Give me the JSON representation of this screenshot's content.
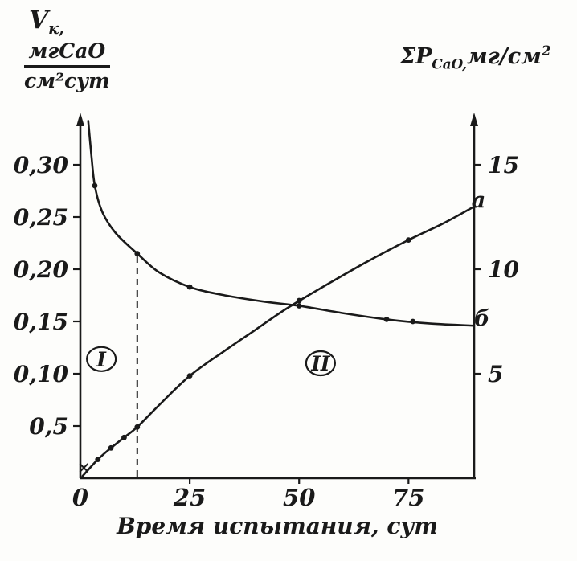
{
  "figure": {
    "background": "#fdfdfb",
    "ink": "#1a1a1a"
  },
  "left_axis_title": {
    "symbol": "V",
    "subscript": "к,",
    "numerator": "мгCaO",
    "denominator": "см²сут"
  },
  "right_axis_title": {
    "symbol": "ΣP",
    "subscript": "CaO,",
    "units": "мг/см",
    "sup": "2"
  },
  "chart_data": {
    "type": "line",
    "title": "",
    "xlabel": "Время испытания, сут",
    "ylabel_left": "Vк, мгCaO/(см²·сут)",
    "ylabel_right": "ΣP CaO, мг/см²",
    "grid": false,
    "legend_position": "none",
    "x_range": [
      0,
      90
    ],
    "x_ticks": [
      {
        "label": "0",
        "value": 0
      },
      {
        "label": "25",
        "value": 25
      },
      {
        "label": "50",
        "value": 50
      },
      {
        "label": "75",
        "value": 75
      }
    ],
    "left_axis": {
      "range": [
        0,
        0.35
      ],
      "ticks": [
        {
          "label": "0,30",
          "value": 0.3
        },
        {
          "label": "0,25",
          "value": 0.25
        },
        {
          "label": "0,20",
          "value": 0.2
        },
        {
          "label": "0,15",
          "value": 0.15
        },
        {
          "label": "0,10",
          "value": 0.1
        },
        {
          "label": "0,5",
          "value": 0.05
        }
      ]
    },
    "right_axis": {
      "range": [
        0,
        17.5
      ],
      "ticks": [
        {
          "label": "15",
          "value": 15
        },
        {
          "label": "10",
          "value": 10
        },
        {
          "label": "5",
          "value": 5
        }
      ]
    },
    "series": [
      {
        "name": "б",
        "axis": "left",
        "description": "corrosion rate Vк, decreasing curve",
        "points": [
          [
            1.8,
            0.342
          ],
          [
            2.5,
            0.31
          ],
          [
            3.3,
            0.28
          ],
          [
            5,
            0.255
          ],
          [
            8,
            0.235
          ],
          [
            13,
            0.215
          ],
          [
            18,
            0.197
          ],
          [
            25,
            0.183
          ],
          [
            33,
            0.175
          ],
          [
            42,
            0.169
          ],
          [
            50,
            0.165
          ],
          [
            60,
            0.158
          ],
          [
            70,
            0.152
          ],
          [
            80,
            0.148
          ],
          [
            90,
            0.146
          ]
        ],
        "markers": [
          [
            3.3,
            0.28
          ],
          [
            13,
            0.215
          ],
          [
            25,
            0.183
          ],
          [
            50,
            0.165
          ],
          [
            70,
            0.152
          ],
          [
            76,
            0.15
          ]
        ],
        "label_pos": [
          91.8,
          0.153
        ]
      },
      {
        "name": "а",
        "axis": "right",
        "description": "cumulative CaO loss ΣP, increasing curve",
        "points": [
          [
            0.5,
            0.1
          ],
          [
            4,
            0.9
          ],
          [
            7,
            1.45
          ],
          [
            10,
            1.95
          ],
          [
            13,
            2.45
          ],
          [
            18,
            3.5
          ],
          [
            25,
            4.9
          ],
          [
            33,
            6.1
          ],
          [
            40,
            7.1
          ],
          [
            47,
            8.1
          ],
          [
            55,
            9.1
          ],
          [
            65,
            10.3
          ],
          [
            75,
            11.4
          ],
          [
            83,
            12.2
          ],
          [
            90,
            13.0
          ]
        ],
        "markers": [
          [
            4,
            0.9
          ],
          [
            7,
            1.45
          ],
          [
            10,
            1.95
          ],
          [
            13,
            2.45
          ],
          [
            25,
            4.9
          ],
          [
            50,
            8.5
          ],
          [
            75,
            11.4
          ]
        ],
        "label_pos": [
          91,
          13.3
        ]
      }
    ],
    "dashed_line": {
      "x": 13,
      "to_value": 0.215,
      "axis": "left"
    },
    "origin_cross": {
      "x": 0.8,
      "value": 0.5,
      "axis": "right"
    },
    "regions": [
      {
        "label": "I",
        "x": 4.8,
        "value": 0.114
      },
      {
        "label": "II",
        "x": 54.9,
        "value": 0.11
      }
    ]
  }
}
